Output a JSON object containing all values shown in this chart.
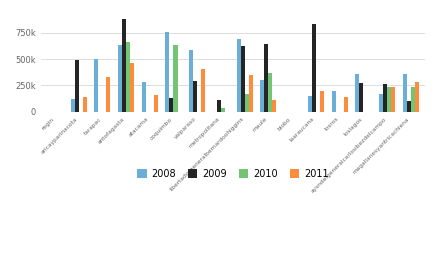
{
  "regions": [
    "regin",
    "aricayparinacota",
    "tarapac",
    "antofagasta",
    "atacama",
    "coquimbo",
    "valparaso",
    "metropolitana",
    "libertadorgeneralbernardoohiggins",
    "maule",
    "biobo",
    "laaraucana",
    "losros",
    "loslagos",
    "aysndelgeneralcarlosibezdelcampo",
    "magallanesyantricachiena"
  ],
  "data": {
    "2008": [
      0,
      120000,
      500000,
      630000,
      280000,
      760000,
      590000,
      0,
      690000,
      300000,
      0,
      150000,
      200000,
      360000,
      170000,
      360000
    ],
    "2009": [
      0,
      490000,
      0,
      880000,
      0,
      130000,
      290000,
      110000,
      620000,
      640000,
      0,
      830000,
      0,
      270000,
      265000,
      105000
    ],
    "2010": [
      0,
      0,
      0,
      660000,
      0,
      630000,
      0,
      30000,
      165000,
      370000,
      0,
      0,
      0,
      0,
      235000,
      235000
    ],
    "2011": [
      0,
      140000,
      330000,
      460000,
      155000,
      0,
      410000,
      0,
      345000,
      110000,
      0,
      195000,
      140000,
      0,
      235000,
      285000
    ]
  },
  "colors": {
    "2008": "#6baed6",
    "2009": "#252525",
    "2010": "#74c476",
    "2011": "#fd8d3c"
  },
  "yticks": [
    0,
    250000,
    500000,
    750000
  ],
  "ytick_labels": [
    "0",
    "250k",
    "500k",
    "750k"
  ],
  "legend_years": [
    "2008",
    "2009",
    "2010",
    "2011"
  ],
  "background_color": "#ffffff"
}
